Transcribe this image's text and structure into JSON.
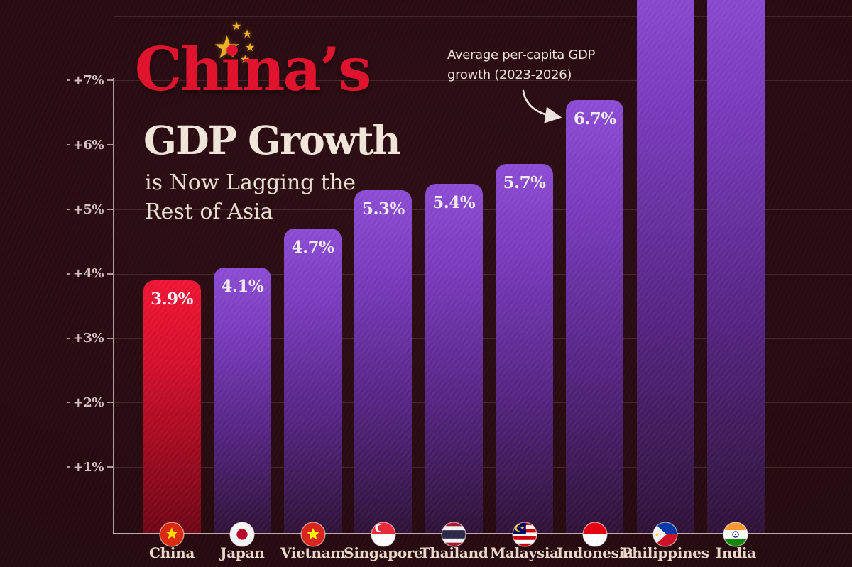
{
  "title": {
    "highlight": "China’s",
    "main": "GDP Growth",
    "subtitle_line1": "is Now Lagging the",
    "subtitle_line2": "Rest of Asia"
  },
  "annotation": {
    "line1": "Average per-capita GDP",
    "line2": "growth (2023-2026)"
  },
  "chart_data": {
    "type": "bar",
    "title": "China's GDP Growth is Now Lagging the Rest of Asia",
    "annotation": "Average per-capita GDP growth (2023-2026)",
    "categories": [
      "China",
      "Japan",
      "Vietnam",
      "Singapore",
      "Thailand",
      "Malaysia",
      "Indonesia",
      "Philippines",
      "India"
    ],
    "values": [
      3.9,
      4.1,
      4.7,
      5.3,
      5.4,
      5.7,
      6.7,
      null,
      null
    ],
    "value_labels": [
      "3.9%",
      "4.1%",
      "4.7%",
      "5.3%",
      "5.4%",
      "5.7%",
      "6.7%",
      "",
      ""
    ],
    "unit": "percent",
    "highlighted_category": "China",
    "bars_clipped_at_top": [
      "Philippines",
      "India"
    ],
    "y_tick_values": [
      7,
      6,
      5,
      4,
      3,
      2,
      1
    ],
    "y_tick_labels": [
      "+7%",
      "+6%",
      "+5%",
      "+4%",
      "+3%",
      "+2%",
      "+1%"
    ],
    "gridline_values": [
      1,
      2,
      3,
      4,
      5,
      6,
      7,
      8
    ],
    "ylim_visible": [
      0,
      7.9
    ],
    "grid": true,
    "legend_position": "none",
    "flag_icons": [
      "china-flag-icon",
      "japan-flag-icon",
      "vietnam-flag-icon",
      "singapore-flag-icon",
      "thailand-flag-icon",
      "malaysia-flag-icon",
      "indonesia-flag-icon",
      "philippines-flag-icon",
      "india-flag-icon"
    ]
  },
  "colors": {
    "background": "#280b10",
    "china_bar_top": "#f11434",
    "china_bar_bottom": "#6f0515",
    "asia_bar_top": "#8d4cd6",
    "asia_bar_bottom": "#301137",
    "title_highlight_red": "#e2122d",
    "cream_text": "#f2e7da",
    "star_gold": "#f0b525",
    "axis": "#d6c2c6"
  }
}
